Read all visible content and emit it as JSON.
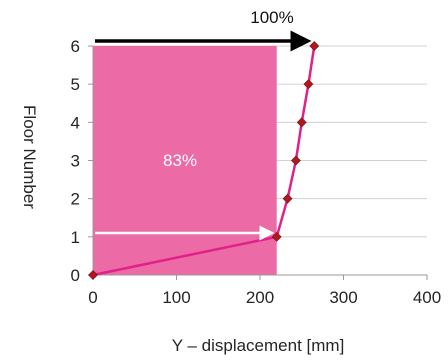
{
  "chart_data": {
    "type": "line",
    "xlabel": "Y – displacement [mm]",
    "ylabel": "Floor Number",
    "xlim": [
      0,
      400
    ],
    "ylim": [
      0,
      6
    ],
    "x_ticks": [
      "0",
      "100",
      "200",
      "300",
      "400"
    ],
    "y_ticks": [
      "0",
      "1",
      "2",
      "3",
      "4",
      "5",
      "6"
    ],
    "grid": "horizontal",
    "series": [
      {
        "color": "#e0218a",
        "marker_color": "#b0171f",
        "points": [
          {
            "x": 0,
            "y": 0
          },
          {
            "x": 220,
            "y": 1
          },
          {
            "x": 233,
            "y": 2
          },
          {
            "x": 243,
            "y": 3
          },
          {
            "x": 250,
            "y": 4
          },
          {
            "x": 258,
            "y": 5
          },
          {
            "x": 265,
            "y": 6
          }
        ]
      }
    ],
    "shaded_region": {
      "x_from": 0,
      "x_to": 220,
      "y_from": 0,
      "y_to": 6,
      "color": "#ec6aa5"
    },
    "annotations": [
      {
        "text": "100%",
        "arrow_x_from": 0,
        "arrow_x_to": 265,
        "arrow_y": 6,
        "arrow_color": "#000000"
      },
      {
        "text": "83%",
        "arrow_x_from": 0,
        "arrow_x_to": 220,
        "arrow_y": 1.1,
        "arrow_color": "#ffffff"
      }
    ]
  }
}
